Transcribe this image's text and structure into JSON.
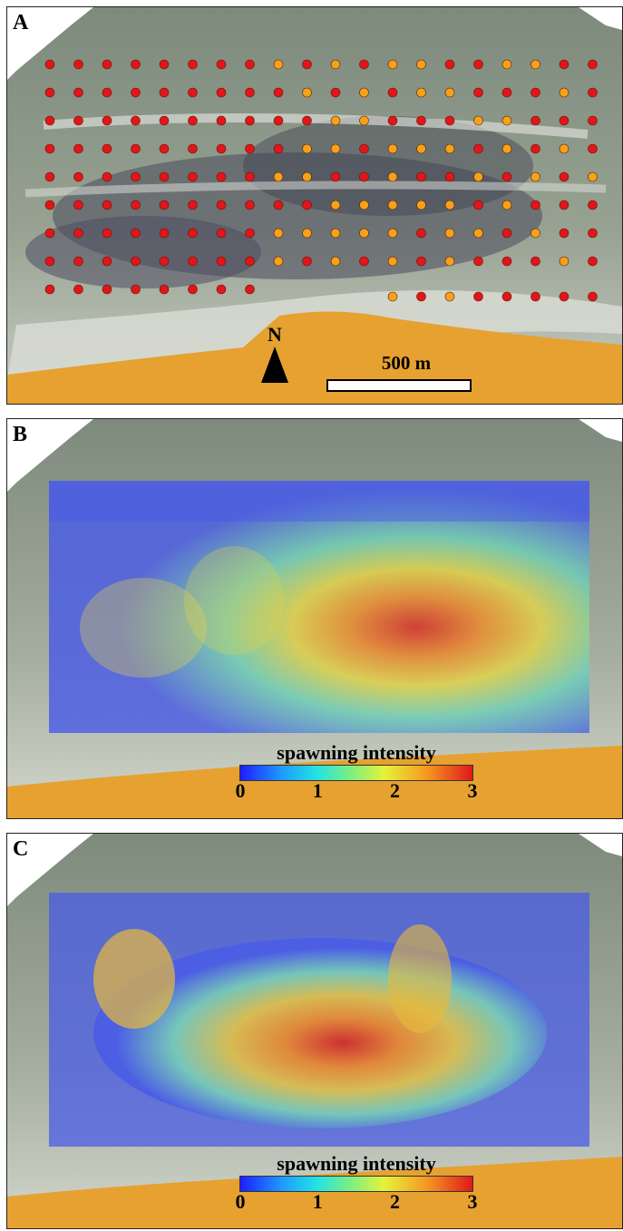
{
  "panels": [
    {
      "letter": "A",
      "north_label": "N",
      "scale_label": "500 m",
      "grid": {
        "rows": 9,
        "cols": 20,
        "point_colors": {
          "red": "#e3141a",
          "orange": "#f5a21a"
        },
        "orange_points": [
          [
            0,
            8
          ],
          [
            0,
            10
          ],
          [
            0,
            12
          ],
          [
            0,
            13
          ],
          [
            0,
            16
          ],
          [
            0,
            17
          ],
          [
            1,
            9
          ],
          [
            1,
            11
          ],
          [
            1,
            13
          ],
          [
            1,
            14
          ],
          [
            1,
            18
          ],
          [
            2,
            10
          ],
          [
            2,
            11
          ],
          [
            2,
            15
          ],
          [
            2,
            16
          ],
          [
            3,
            9
          ],
          [
            3,
            10
          ],
          [
            3,
            12
          ],
          [
            3,
            13
          ],
          [
            3,
            14
          ],
          [
            3,
            16
          ],
          [
            3,
            18
          ],
          [
            4,
            8
          ],
          [
            4,
            9
          ],
          [
            4,
            12
          ],
          [
            4,
            15
          ],
          [
            4,
            17
          ],
          [
            4,
            19
          ],
          [
            5,
            10
          ],
          [
            5,
            11
          ],
          [
            5,
            12
          ],
          [
            5,
            13
          ],
          [
            5,
            14
          ],
          [
            5,
            16
          ],
          [
            6,
            8
          ],
          [
            6,
            9
          ],
          [
            6,
            10
          ],
          [
            6,
            11
          ],
          [
            6,
            12
          ],
          [
            6,
            14
          ],
          [
            6,
            15
          ],
          [
            6,
            17
          ],
          [
            7,
            8
          ],
          [
            7,
            10
          ],
          [
            7,
            12
          ],
          [
            7,
            14
          ],
          [
            7,
            18
          ],
          [
            8,
            12
          ],
          [
            8,
            14
          ]
        ]
      }
    },
    {
      "letter": "B",
      "legend": {
        "title": "spawning intensity",
        "ticks": [
          "0",
          "1",
          "2",
          "3"
        ]
      }
    },
    {
      "letter": "C",
      "legend": {
        "title": "spawning intensity",
        "ticks": [
          "0",
          "1",
          "2",
          "3"
        ]
      }
    }
  ],
  "colors": {
    "land": "#e6a130",
    "water": "#8e9a8a",
    "reef": "#4a4a5a",
    "sand": "#d9dcd2",
    "heat_low": "#3b4de0",
    "heat_high": "#e01818"
  }
}
